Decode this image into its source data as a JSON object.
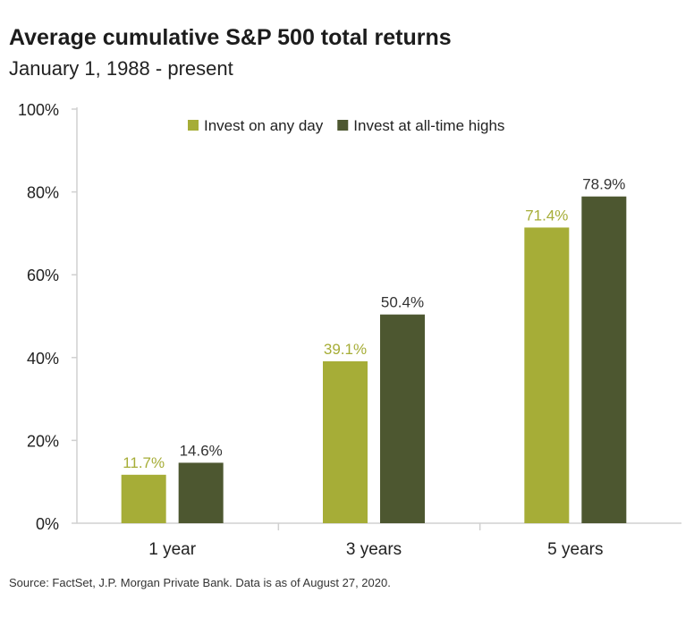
{
  "colors": {
    "any_day": "#a6ad37",
    "all_time_highs": "#4d5730",
    "axis": "#d0d0d0",
    "text": "#222222"
  },
  "chart_data": {
    "type": "bar",
    "title": "Average cumulative S&P 500 total returns",
    "subtitle": "January 1, 1988 - present",
    "categories": [
      "1 year",
      "3 years",
      "5 years"
    ],
    "series": [
      {
        "name": "Invest on any day",
        "values": [
          11.7,
          39.1,
          71.4
        ],
        "labels": [
          "11.7%",
          "39.1%",
          "71.4%"
        ],
        "color": "#a6ad37"
      },
      {
        "name": "Invest at all-time highs",
        "values": [
          14.6,
          50.4,
          78.9
        ],
        "labels": [
          "14.6%",
          "50.4%",
          "78.9%"
        ],
        "color": "#4d5730"
      }
    ],
    "ylim": [
      0,
      100
    ],
    "yticks": [
      0,
      20,
      40,
      60,
      80,
      100
    ],
    "ytick_labels": [
      "0%",
      "20%",
      "40%",
      "60%",
      "80%",
      "100%"
    ],
    "xlabel": "",
    "ylabel": "",
    "grid": false,
    "legend_position": "top-center"
  },
  "source": "Source: FactSet, J.P. Morgan Private Bank. Data is as of August 27, 2020."
}
